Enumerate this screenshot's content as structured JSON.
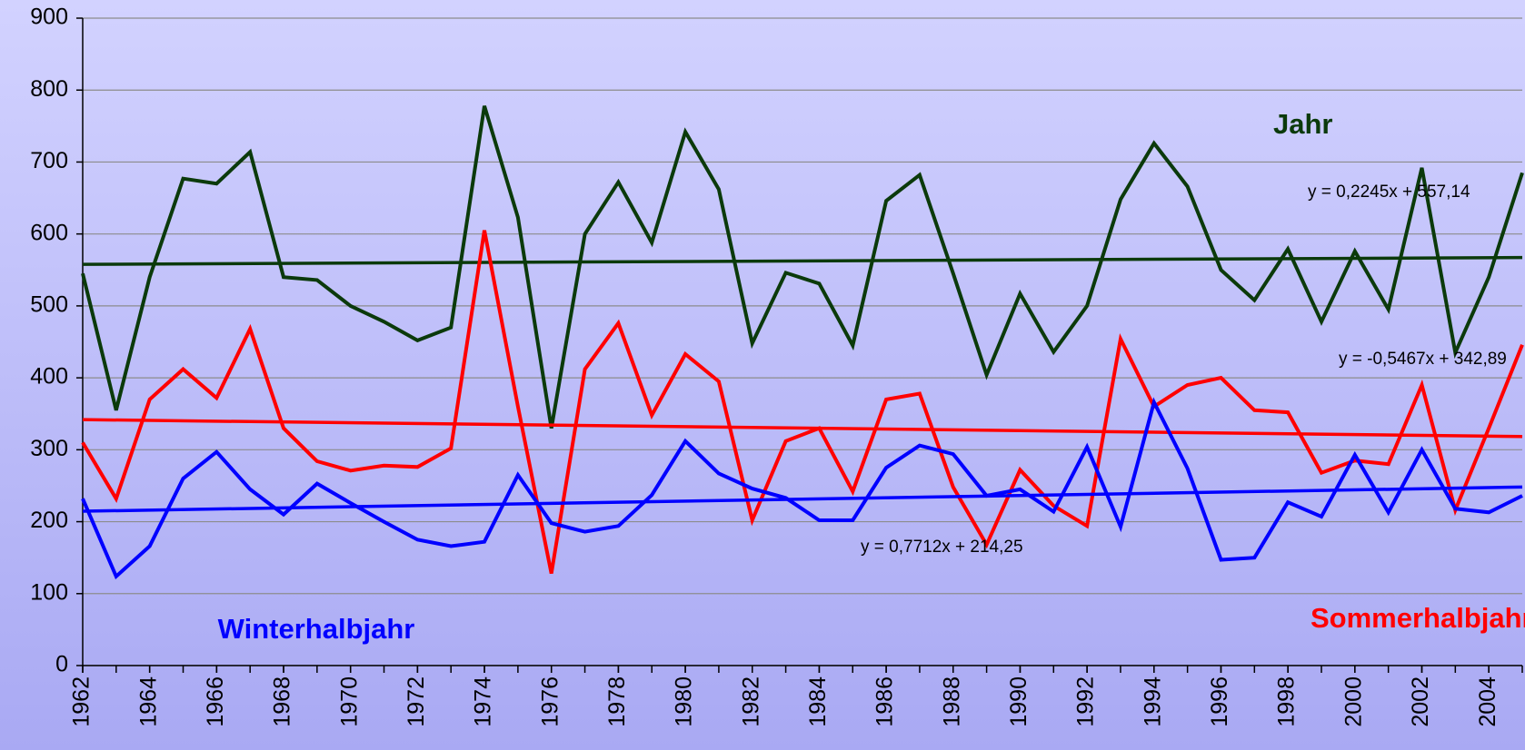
{
  "chart_data": {
    "type": "line",
    "x": [
      1962,
      1963,
      1964,
      1965,
      1966,
      1967,
      1968,
      1969,
      1970,
      1971,
      1972,
      1973,
      1974,
      1975,
      1976,
      1977,
      1978,
      1979,
      1980,
      1981,
      1982,
      1983,
      1984,
      1985,
      1986,
      1987,
      1988,
      1989,
      1990,
      1991,
      1992,
      1993,
      1994,
      1995,
      1996,
      1997,
      1998,
      1999,
      2000,
      2001,
      2002,
      2003,
      2004,
      2005
    ],
    "xlim": [
      1962,
      2005
    ],
    "xticks": [
      1962,
      1964,
      1966,
      1968,
      1970,
      1972,
      1974,
      1976,
      1978,
      1980,
      1982,
      1984,
      1986,
      1988,
      1990,
      1992,
      1994,
      1996,
      1998,
      2000,
      2002,
      2004
    ],
    "ylim": [
      0,
      900
    ],
    "yticks": [
      0,
      100,
      200,
      300,
      400,
      500,
      600,
      700,
      800,
      900
    ],
    "grid": true,
    "trendline": true,
    "series": [
      {
        "name": "Jahr",
        "color": "#0b3a0b",
        "equation": "y = 0,2245x + 557,14",
        "values": [
          545,
          355,
          540,
          677,
          670,
          714,
          540,
          536,
          500,
          478,
          452,
          470,
          778,
          623,
          330,
          600,
          672,
          588,
          742,
          662,
          448,
          546,
          531,
          445,
          646,
          682,
          545,
          404,
          517,
          436,
          500,
          648,
          726,
          666,
          550,
          508,
          579,
          478,
          576,
          495,
          692,
          435,
          540,
          685
        ]
      },
      {
        "name": "Sommerhalbjahr",
        "color": "#ff0000",
        "equation": "y = -0,5467x + 342,89",
        "values": [
          310,
          232,
          370,
          412,
          372,
          468,
          330,
          284,
          271,
          278,
          276,
          302,
          605,
          360,
          128,
          412,
          476,
          348,
          433,
          395,
          202,
          312,
          330,
          242,
          370,
          378,
          248,
          168,
          272,
          222,
          194,
          454,
          360,
          390,
          400,
          355,
          352,
          268,
          285,
          280,
          390,
          216,
          330,
          446
        ]
      },
      {
        "name": "Winterhalbjahr",
        "color": "#0000ff",
        "equation": "y = 0,7712x + 214,25",
        "values": [
          232,
          124,
          166,
          260,
          297,
          245,
          210,
          253,
          226,
          200,
          175,
          166,
          172,
          265,
          198,
          186,
          194,
          237,
          312,
          267,
          246,
          233,
          202,
          202,
          275,
          306,
          294,
          236,
          245,
          214,
          304,
          193,
          366,
          274,
          147,
          150,
          227,
          207,
          293,
          213,
          300,
          218,
          213,
          236
        ]
      }
    ]
  }
}
